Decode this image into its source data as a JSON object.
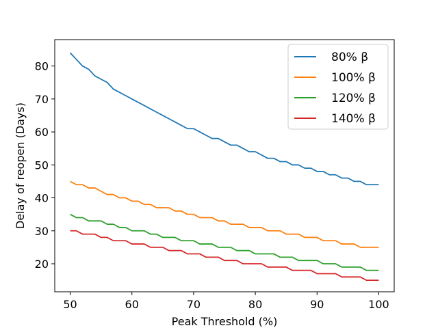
{
  "chart_data": {
    "type": "line",
    "title": "",
    "xlabel": "Peak Threshold (%)",
    "ylabel": "Delay of reopen (Days)",
    "xlim": [
      47.5,
      102.5
    ],
    "ylim": [
      11.5,
      88
    ],
    "x_ticks": [
      50,
      60,
      70,
      80,
      90,
      100
    ],
    "y_ticks": [
      20,
      30,
      40,
      50,
      60,
      70,
      80
    ],
    "grid": false,
    "legend_position": "top-right",
    "x": [
      50,
      51,
      52,
      53,
      54,
      55,
      56,
      57,
      58,
      59,
      60,
      61,
      62,
      63,
      64,
      65,
      66,
      67,
      68,
      69,
      70,
      71,
      72,
      73,
      74,
      75,
      76,
      77,
      78,
      79,
      80,
      81,
      82,
      83,
      84,
      85,
      86,
      87,
      88,
      89,
      90,
      91,
      92,
      93,
      94,
      95,
      96,
      97,
      98,
      99,
      100
    ],
    "series": [
      {
        "name": "80% β",
        "color": "#1f77b4",
        "values": [
          84,
          82,
          80,
          79,
          77,
          76,
          75,
          73,
          72,
          71,
          70,
          69,
          68,
          67,
          66,
          65,
          64,
          63,
          62,
          61,
          61,
          60,
          59,
          58,
          58,
          57,
          56,
          56,
          55,
          54,
          54,
          53,
          52,
          52,
          51,
          51,
          50,
          50,
          49,
          49,
          48,
          48,
          47,
          47,
          46,
          46,
          45,
          45,
          44,
          44,
          44
        ]
      },
      {
        "name": "100% β",
        "color": "#ff7f0e",
        "values": [
          45,
          44,
          44,
          43,
          43,
          42,
          41,
          41,
          40,
          40,
          39,
          39,
          38,
          38,
          37,
          37,
          37,
          36,
          36,
          35,
          35,
          34,
          34,
          34,
          33,
          33,
          32,
          32,
          32,
          31,
          31,
          31,
          30,
          30,
          30,
          29,
          29,
          29,
          28,
          28,
          28,
          27,
          27,
          27,
          26,
          26,
          26,
          25,
          25,
          25,
          25
        ]
      },
      {
        "name": "120% β",
        "color": "#2ca02c",
        "values": [
          35,
          34,
          34,
          33,
          33,
          33,
          32,
          32,
          31,
          31,
          30,
          30,
          30,
          29,
          29,
          28,
          28,
          28,
          27,
          27,
          27,
          26,
          26,
          26,
          25,
          25,
          25,
          24,
          24,
          24,
          23,
          23,
          23,
          23,
          22,
          22,
          22,
          21,
          21,
          21,
          21,
          20,
          20,
          20,
          19,
          19,
          19,
          19,
          18,
          18,
          18
        ]
      },
      {
        "name": "140% β",
        "color": "#d62728",
        "values": [
          30,
          30,
          29,
          29,
          29,
          28,
          28,
          27,
          27,
          27,
          26,
          26,
          26,
          25,
          25,
          25,
          24,
          24,
          24,
          23,
          23,
          23,
          22,
          22,
          22,
          21,
          21,
          21,
          20,
          20,
          20,
          20,
          19,
          19,
          19,
          19,
          18,
          18,
          18,
          18,
          17,
          17,
          17,
          17,
          16,
          16,
          16,
          16,
          15,
          15,
          15
        ]
      }
    ]
  }
}
